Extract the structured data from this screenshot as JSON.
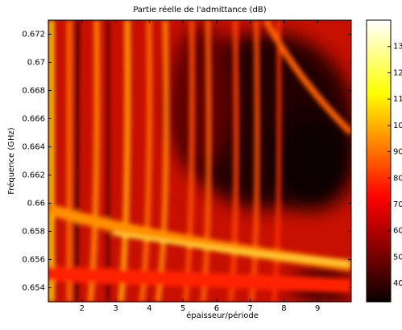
{
  "chart_data": {
    "type": "heatmap",
    "title": "Partie réelle de l'admittance (dB)",
    "xlabel": "épaisseur/période",
    "ylabel": "Fréquence (GHz)",
    "xlim": [
      1,
      10
    ],
    "xticks": [
      2,
      3,
      4,
      5,
      6,
      7,
      8,
      9
    ],
    "ylim": [
      0.653,
      0.673
    ],
    "yticks": [
      0.654,
      0.656,
      0.658,
      0.66,
      0.662,
      0.664,
      0.666,
      0.668,
      0.67,
      0.672
    ],
    "colormap": "hot",
    "clim": [
      33,
      140
    ],
    "cticks": [
      40,
      50,
      60,
      70,
      80,
      90,
      100,
      110,
      120,
      130
    ]
  }
}
